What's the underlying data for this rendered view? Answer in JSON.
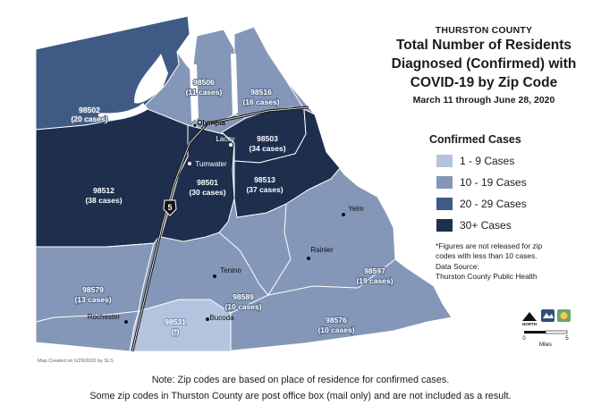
{
  "title": {
    "county": "THURSTON COUNTY",
    "line1": "Total Number of Residents",
    "line2": "Diagnosed (Confirmed) with",
    "line3": "COVID-19 by Zip Code",
    "date_range": "March 11 through June 28, 2020"
  },
  "legend": {
    "title": "Confirmed Cases",
    "items": [
      {
        "label": "1 - 9 Cases",
        "color": "#b5c4de"
      },
      {
        "label": "10 - 19 Cases",
        "color": "#8497b8"
      },
      {
        "label": "20 - 29 Cases",
        "color": "#3e5a85"
      },
      {
        "label": "30+ Cases",
        "color": "#1e2f4d"
      }
    ]
  },
  "notes": {
    "line1": "*Figures are not released for zip",
    "line2": "codes with less than 10 cases.",
    "line3": "Data Source:",
    "line4": "Thurston County Public Health"
  },
  "zips": {
    "z98502": {
      "code": "98502",
      "cases": "(20 cases)"
    },
    "z98506": {
      "code": "98506",
      "cases": "(11 cases)"
    },
    "z98516": {
      "code": "98516",
      "cases": "(16 cases)"
    },
    "z98503": {
      "code": "98503",
      "cases": "(34 cases)"
    },
    "z98512": {
      "code": "98512",
      "cases": "(38 cases)"
    },
    "z98501": {
      "code": "98501",
      "cases": "(30 cases)"
    },
    "z98513": {
      "code": "98513",
      "cases": "(37 cases)"
    },
    "z98597": {
      "code": "98597",
      "cases": "(19 cases)"
    },
    "z98579": {
      "code": "98579",
      "cases": "(13 cases)"
    },
    "z98589": {
      "code": "98589",
      "cases": "(10 cases)"
    },
    "z98531": {
      "code": "98531",
      "cases": "(*)"
    },
    "z98576": {
      "code": "98576",
      "cases": "(10 cases)"
    }
  },
  "cities": {
    "olympia": "Olympia",
    "lacey": "Lacey",
    "tumwater": "Tumwater",
    "yelm": "Yelm",
    "rainier": "Rainier",
    "tenino": "Tenino",
    "rochester": "Rochester",
    "bucoda": "Bucoda"
  },
  "highway": "5",
  "map_credit": "Map Created on 6/29/2020 by SLS",
  "scale": {
    "zero": "0",
    "five": "5",
    "unit": "Miles"
  },
  "north_label": "NORTH",
  "footer": {
    "line1": "Note: Zip codes are based on place of residence for confirmed cases.",
    "line2": "Some zip codes in Thurston County are post office box (mail only) and are not included as a result."
  }
}
